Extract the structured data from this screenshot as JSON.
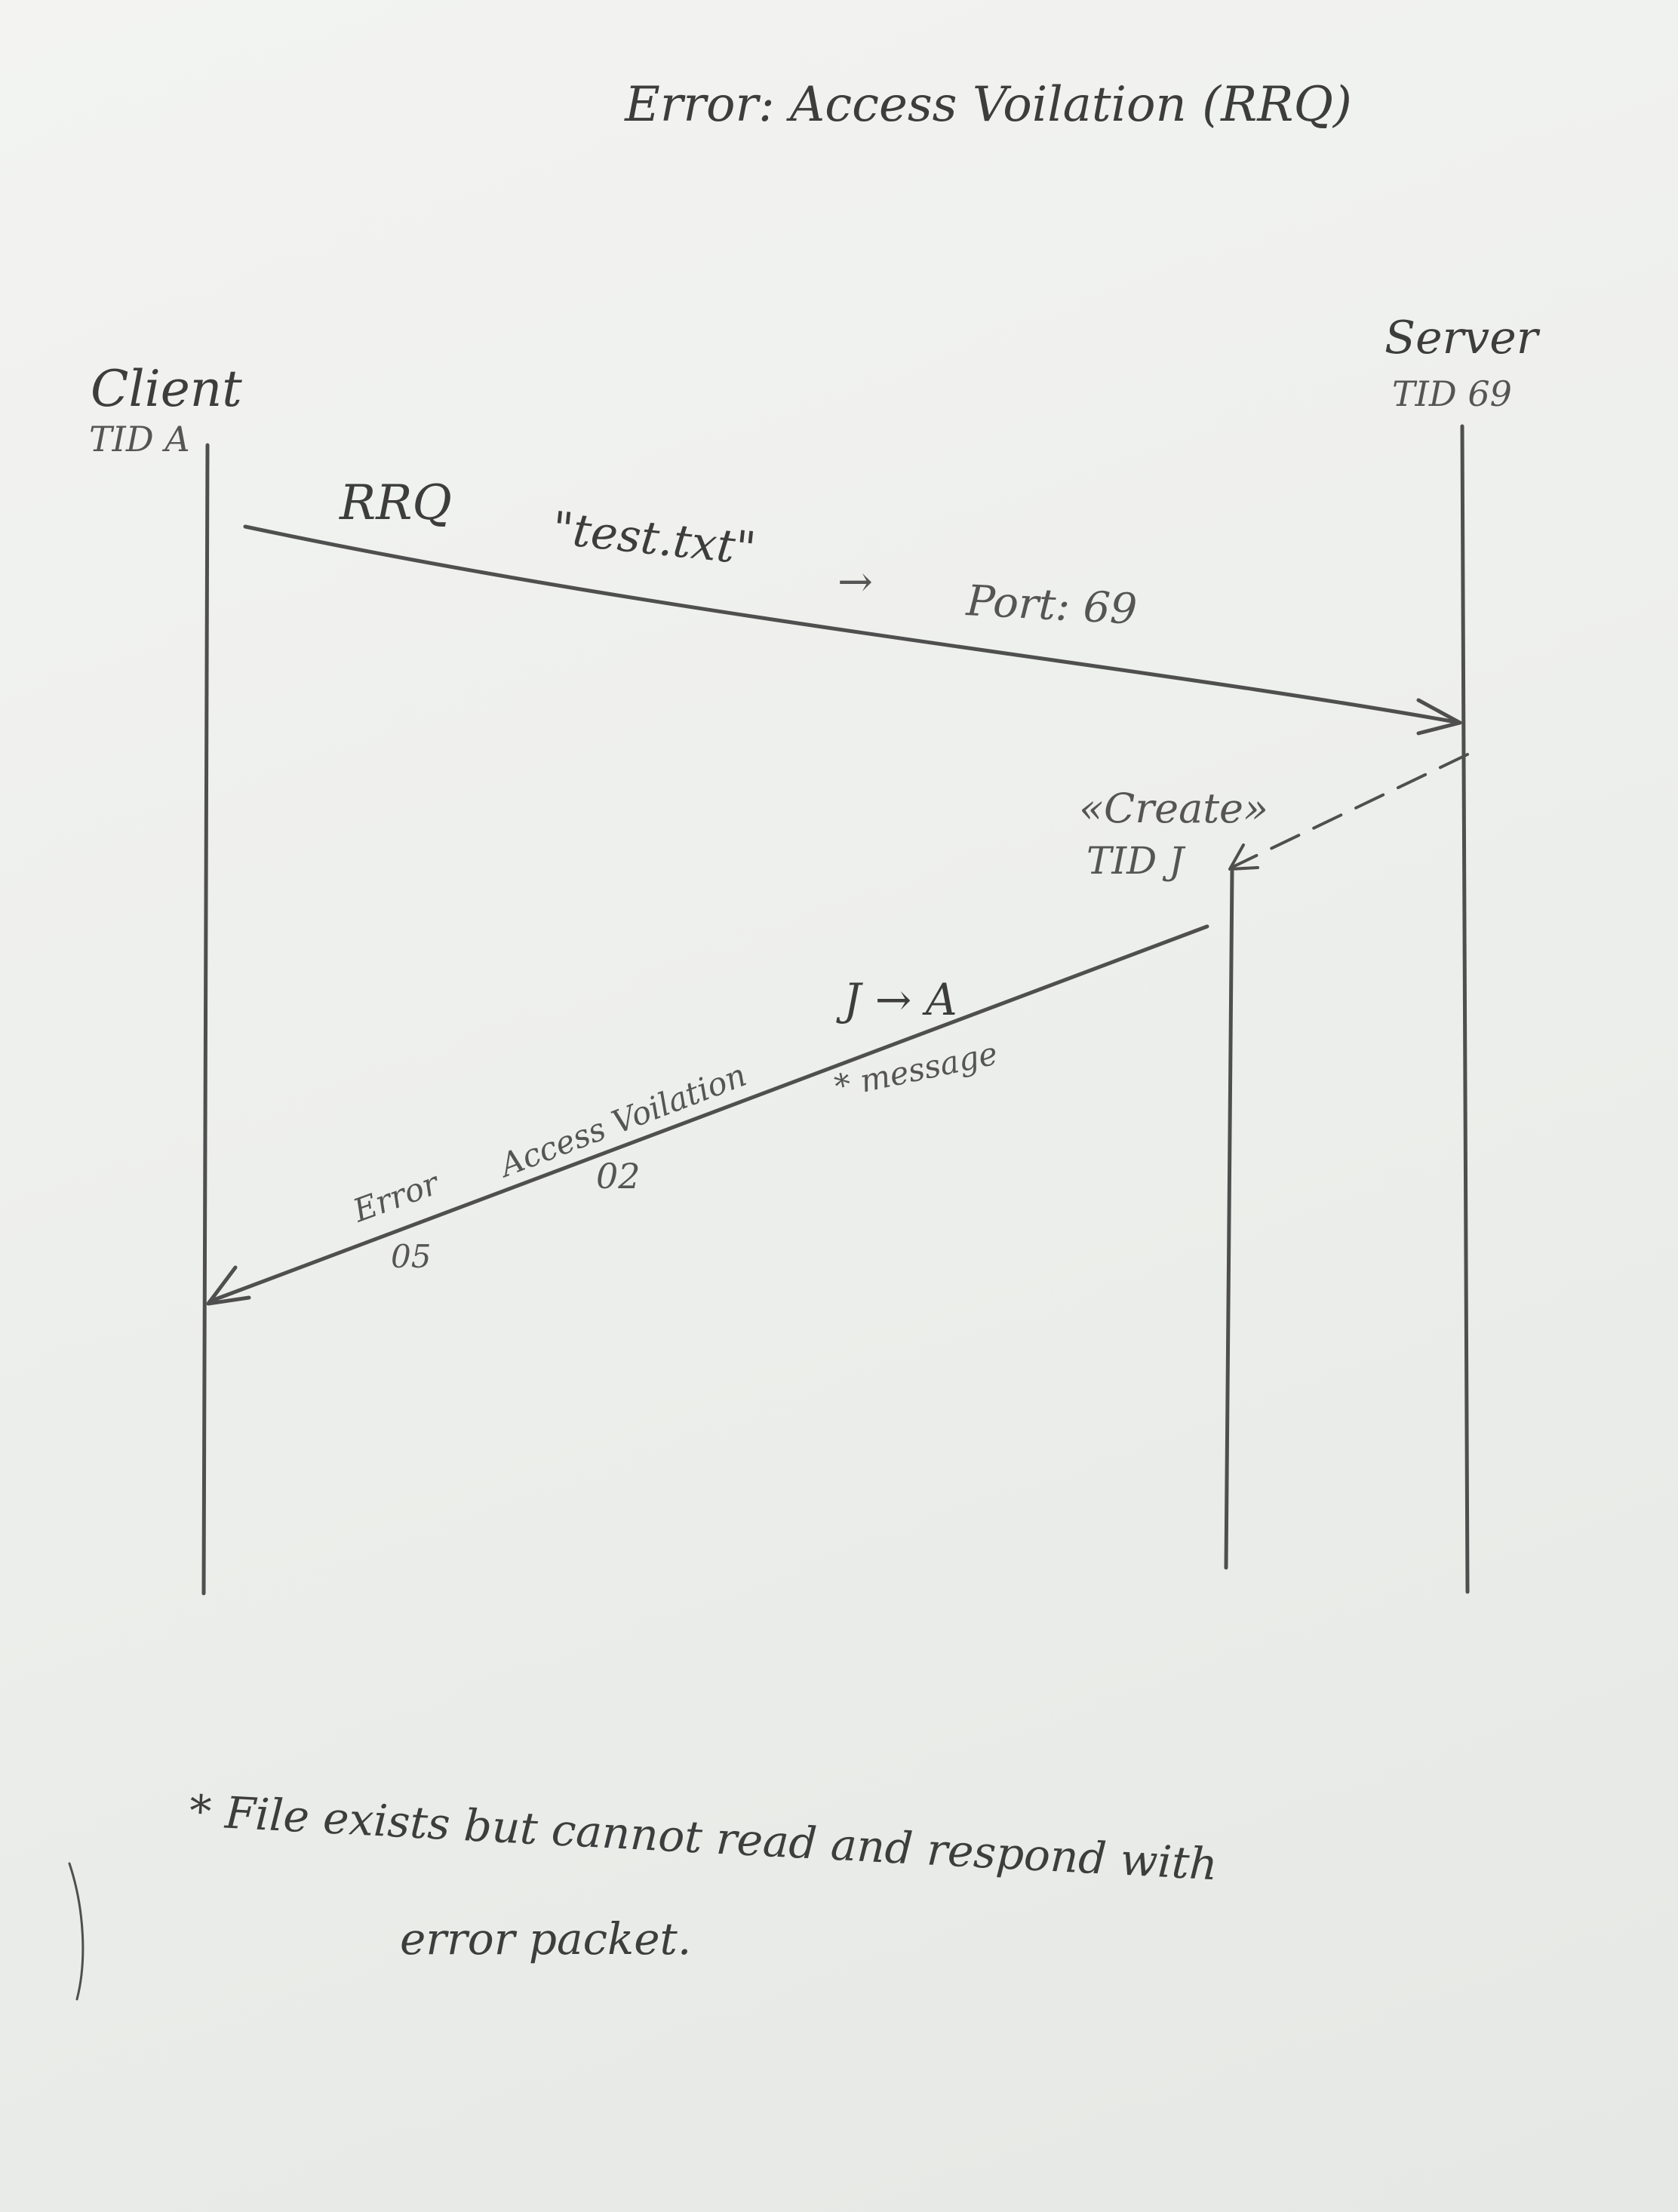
{
  "diagram": {
    "title": "Error: Access Voilation (RRQ)",
    "participants": {
      "client": {
        "name": "Client",
        "tid": "TID A"
      },
      "server": {
        "name": "Server",
        "tid": "TID 69"
      },
      "created": {
        "stereotype": "«Create»",
        "tid": "TID J"
      }
    },
    "messages": {
      "request": {
        "label": "RRQ",
        "file": "\"test.txt\"",
        "arrow_glyph": "→",
        "port": "Port: 69"
      },
      "error": {
        "tid_route": "J → A",
        "note_marker": "* message",
        "opcode_label": "Error",
        "opcode_value": "05",
        "code_label": "Access Voilation",
        "code_value": "02"
      }
    },
    "footnote": {
      "line1": "* File exists but cannot read and respond with",
      "line2": "error packet."
    }
  }
}
